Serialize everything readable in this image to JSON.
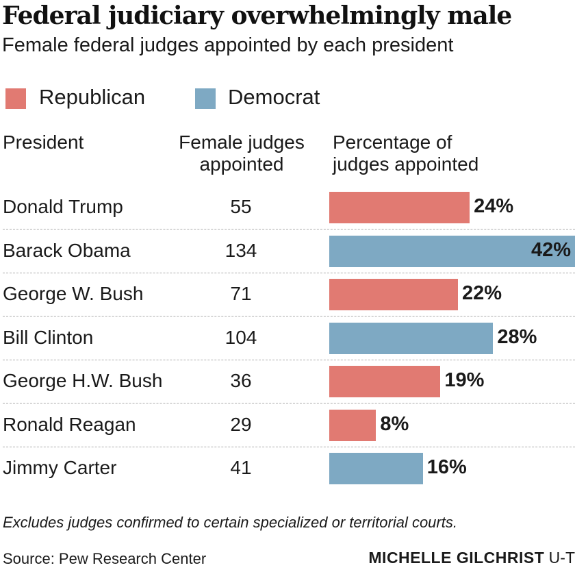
{
  "title": "Federal judiciary overwhelmingly male",
  "subtitle": "Female federal judges appointed by each president",
  "legend": [
    {
      "label": "Republican",
      "color": "#e17a72"
    },
    {
      "label": "Democrat",
      "color": "#7ea9c3"
    }
  ],
  "columns": {
    "president": "President",
    "female_line1": "Female judges",
    "female_line2": "appointed",
    "pct_line1": "Percentage of",
    "pct_line2": "judges appointed"
  },
  "chart_data": {
    "type": "bar",
    "orientation": "horizontal",
    "categories": [
      "Donald Trump",
      "Barack Obama",
      "George W. Bush",
      "Bill Clinton",
      "George H.W. Bush",
      "Ronald Reagan",
      "Jimmy Carter"
    ],
    "female_judges": [
      55,
      134,
      71,
      104,
      36,
      29,
      41
    ],
    "values": [
      24,
      42,
      22,
      28,
      19,
      8,
      16
    ],
    "value_labels": [
      "24%",
      "42%",
      "22%",
      "28%",
      "19%",
      "8%",
      "16%"
    ],
    "party": [
      "Republican",
      "Democrat",
      "Republican",
      "Democrat",
      "Republican",
      "Republican",
      "Democrat"
    ],
    "xlim": [
      0,
      42
    ]
  },
  "footnote": "Excludes judges confirmed to certain specialized or territorial courts.",
  "source": "Source: Pew Research Center",
  "credit_name": "MICHELLE GILCHRIST",
  "credit_org": "U-T"
}
